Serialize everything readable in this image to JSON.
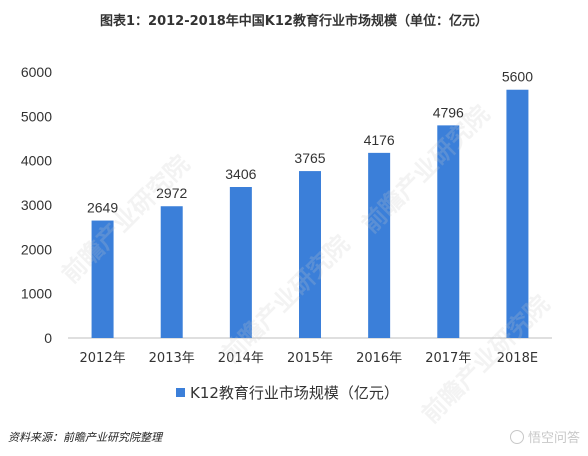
{
  "title": "图表1：2012-2018年中国K12教育行业市场规模（单位：亿元）",
  "source": "资料来源：前瞻产业研究院整理",
  "footer_brand": "悟空问答",
  "watermark_text": "前瞻产业研究院",
  "colors": {
    "bar": "#3b7fd9",
    "axis": "#bfbfbf",
    "text": "#333333",
    "label": "#595959"
  },
  "chart_data": {
    "type": "bar",
    "title": "图表1：2012-2018年中国K12教育行业市场规模（单位：亿元）",
    "categories": [
      "2012年",
      "2013年",
      "2014年",
      "2015年",
      "2016年",
      "2017年",
      "2018E"
    ],
    "series": [
      {
        "name": "K12教育行业市场规模（亿元）",
        "values": [
          2649,
          2972,
          3406,
          3765,
          4176,
          4796,
          5600
        ]
      }
    ],
    "ylim": [
      0,
      6000
    ],
    "yticks": [
      0,
      1000,
      2000,
      3000,
      4000,
      5000,
      6000
    ],
    "grid": false,
    "legend": "bottom-center",
    "data_labels": true
  }
}
